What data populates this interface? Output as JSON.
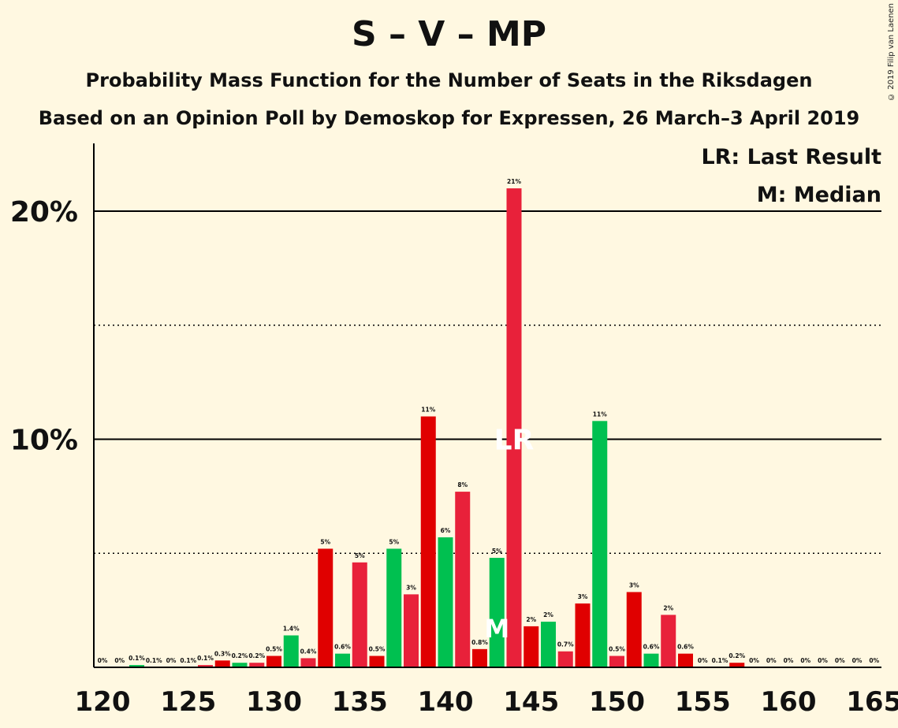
{
  "header": {
    "title": "S – V – MP",
    "subtitle": "Probability Mass Function for the Number of Seats in the Riksdagen",
    "subtitle2": "Based on an Opinion Poll by Demoskop for Expressen, 26 March–3 April 2019",
    "copyright": "© 2019 Filip van Laenen"
  },
  "legend": {
    "last_result": "LR: Last Result",
    "median": "M: Median"
  },
  "colors": {
    "background": "#fff8e1",
    "red": "#e00000",
    "pink_red": "#e8213a",
    "green": "#00c050",
    "axis": "#000000"
  },
  "chart_data": {
    "type": "bar",
    "xlim": [
      120,
      165
    ],
    "ylim": [
      0,
      23
    ],
    "x_ticks": [
      120,
      125,
      130,
      135,
      140,
      145,
      150,
      155,
      160,
      165
    ],
    "y_ticks": [
      {
        "value": 10,
        "label": "10%"
      },
      {
        "value": 20,
        "label": "20%"
      }
    ],
    "dotted_lines": [
      5,
      15
    ],
    "last_result_seat": 144,
    "last_result_marker": "LR",
    "median_seat": 143,
    "median_marker": "M",
    "bars": [
      {
        "x": 120,
        "value": 0,
        "label": "0%",
        "color": "#e00000"
      },
      {
        "x": 121,
        "value": 0,
        "label": "0%",
        "color": "#e8213a"
      },
      {
        "x": 122,
        "value": 0.1,
        "label": "0.1%",
        "color": "#00c050"
      },
      {
        "x": 123,
        "value": 0,
        "label": "0.1%",
        "color": "#e00000"
      },
      {
        "x": 124,
        "value": 0,
        "label": "0%",
        "color": "#e8213a"
      },
      {
        "x": 125,
        "value": 0,
        "label": "0.1%",
        "color": "#00c050"
      },
      {
        "x": 126,
        "value": 0.1,
        "label": "0.1%",
        "color": "#e8213a"
      },
      {
        "x": 127,
        "value": 0.3,
        "label": "0.3%",
        "color": "#e00000"
      },
      {
        "x": 128,
        "value": 0.2,
        "label": "0.2%",
        "color": "#00c050"
      },
      {
        "x": 129,
        "value": 0.2,
        "label": "0.2%",
        "color": "#e8213a"
      },
      {
        "x": 130,
        "value": 0.5,
        "label": "0.5%",
        "color": "#e00000"
      },
      {
        "x": 131,
        "value": 1.4,
        "label": "1.4%",
        "color": "#00c050"
      },
      {
        "x": 132,
        "value": 0.4,
        "label": "0.4%",
        "color": "#e8213a"
      },
      {
        "x": 133,
        "value": 5.2,
        "label": "5%",
        "color": "#e00000"
      },
      {
        "x": 134,
        "value": 0.6,
        "label": "0.6%",
        "color": "#00c050"
      },
      {
        "x": 135,
        "value": 4.6,
        "label": "5%",
        "color": "#e8213a"
      },
      {
        "x": 136,
        "value": 0.5,
        "label": "0.5%",
        "color": "#e00000"
      },
      {
        "x": 137,
        "value": 5.2,
        "label": "5%",
        "color": "#00c050"
      },
      {
        "x": 138,
        "value": 3.2,
        "label": "3%",
        "color": "#e8213a"
      },
      {
        "x": 139,
        "value": 11.0,
        "label": "11%",
        "color": "#e00000"
      },
      {
        "x": 140,
        "value": 5.7,
        "label": "6%",
        "color": "#00c050"
      },
      {
        "x": 141,
        "value": 7.7,
        "label": "8%",
        "color": "#e8213a"
      },
      {
        "x": 142,
        "value": 0.8,
        "label": "0.8%",
        "color": "#e00000"
      },
      {
        "x": 143,
        "value": 4.8,
        "label": "5%",
        "color": "#00c050"
      },
      {
        "x": 144,
        "value": 21.0,
        "label": "21%",
        "color": "#e8213a"
      },
      {
        "x": 145,
        "value": 1.8,
        "label": "2%",
        "color": "#e00000"
      },
      {
        "x": 146,
        "value": 2.0,
        "label": "2%",
        "color": "#00c050"
      },
      {
        "x": 147,
        "value": 0.7,
        "label": "0.7%",
        "color": "#e8213a"
      },
      {
        "x": 148,
        "value": 2.8,
        "label": "3%",
        "color": "#e00000"
      },
      {
        "x": 149,
        "value": 10.8,
        "label": "11%",
        "color": "#00c050"
      },
      {
        "x": 150,
        "value": 0.5,
        "label": "0.5%",
        "color": "#e8213a"
      },
      {
        "x": 151,
        "value": 3.3,
        "label": "3%",
        "color": "#e00000"
      },
      {
        "x": 152,
        "value": 0.6,
        "label": "0.6%",
        "color": "#00c050"
      },
      {
        "x": 153,
        "value": 2.3,
        "label": "2%",
        "color": "#e8213a"
      },
      {
        "x": 154,
        "value": 0.6,
        "label": "0.6%",
        "color": "#e00000"
      },
      {
        "x": 155,
        "value": 0,
        "label": "0%",
        "color": "#00c050"
      },
      {
        "x": 156,
        "value": 0,
        "label": "0.1%",
        "color": "#e8213a"
      },
      {
        "x": 157,
        "value": 0.2,
        "label": "0.2%",
        "color": "#e00000"
      },
      {
        "x": 158,
        "value": 0,
        "label": "0%",
        "color": "#00c050"
      },
      {
        "x": 159,
        "value": 0,
        "label": "0%",
        "color": "#e8213a"
      },
      {
        "x": 160,
        "value": 0,
        "label": "0%",
        "color": "#e00000"
      },
      {
        "x": 161,
        "value": 0,
        "label": "0%",
        "color": "#00c050"
      },
      {
        "x": 162,
        "value": 0,
        "label": "0%",
        "color": "#e8213a"
      },
      {
        "x": 163,
        "value": 0,
        "label": "0%",
        "color": "#e00000"
      },
      {
        "x": 164,
        "value": 0,
        "label": "0%",
        "color": "#00c050"
      },
      {
        "x": 165,
        "value": 0,
        "label": "0%",
        "color": "#e8213a"
      }
    ]
  }
}
